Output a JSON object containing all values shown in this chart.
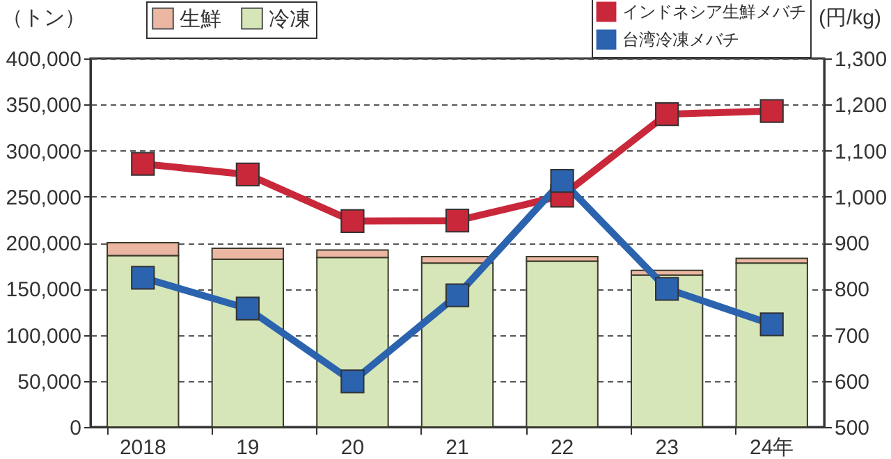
{
  "chart_data": {
    "type": "bar",
    "stacked": true,
    "categories": [
      "2018",
      "19",
      "20",
      "21",
      "22",
      "23",
      "24年"
    ],
    "ylabel": "（トン）",
    "y2label": "(円/kg)",
    "ylim": [
      0,
      400000
    ],
    "yticks": [
      0,
      {
        "value": 50000,
        "label": "50,000"
      },
      {
        "value": 100000,
        "label": "100,000"
      },
      {
        "value": 150000,
        "label": "150,000"
      },
      {
        "value": 200000,
        "label": "200,000"
      },
      {
        "value": 250000,
        "label": "250,000"
      },
      {
        "value": 300000,
        "label": "300,000"
      },
      {
        "value": 350000,
        "label": "350,000"
      },
      {
        "value": 400000,
        "label": "400,000"
      }
    ],
    "y2lim": [
      500,
      1300
    ],
    "y2ticks": [
      500,
      600,
      700,
      800,
      900,
      {
        "value": 1000,
        "label": "1,000"
      },
      {
        "value": 1100,
        "label": "1,100"
      },
      {
        "value": 1200,
        "label": "1,200"
      },
      {
        "value": 1300,
        "label": "1,300"
      }
    ],
    "grid": "y",
    "legend": "top",
    "marker": "square",
    "series": [
      {
        "name": "冷凍",
        "color": "#d6e6b9",
        "values": [
          186000,
          182000,
          184000,
          178000,
          180000,
          165000,
          178000
        ]
      },
      {
        "name": "生鮮",
        "color": "#ebb6a2",
        "values": [
          14000,
          12000,
          8000,
          7000,
          5000,
          5000,
          5000
        ]
      },
      {
        "name": "インドネシア生鮮メバチ",
        "type": "line",
        "axis": "y2",
        "color": "#c9283a",
        "values": [
          1071,
          1048,
          947,
          948,
          1002,
          1179,
          1186
        ]
      },
      {
        "name": "台湾冷凍メバチ",
        "type": "line",
        "axis": "y2",
        "color": "#2b63ae",
        "values": [
          824,
          757,
          599,
          786,
          1034,
          800,
          723
        ]
      }
    ]
  }
}
